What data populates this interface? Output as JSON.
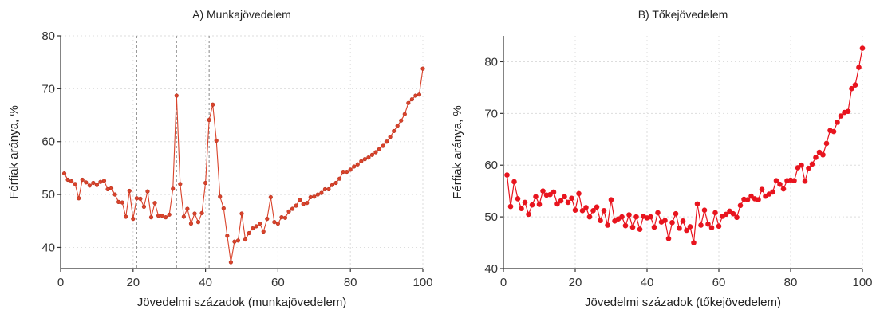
{
  "chart_data": [
    {
      "type": "line",
      "title": "A) Munkajövedelem",
      "xlabel": "Jövedelmi századok (munkajövedelem)",
      "ylabel": "Férfiak aránya, %",
      "xlim": [
        0,
        100
      ],
      "ylim": [
        36,
        80
      ],
      "xticks": [
        "0",
        "20",
        "40",
        "60",
        "80",
        "100"
      ],
      "yticks": [
        "40",
        "50",
        "60",
        "70",
        "80"
      ],
      "grid": true,
      "color": "#d9432b",
      "vlines": [
        21,
        32,
        41
      ],
      "x": [
        1,
        2,
        3,
        4,
        5,
        6,
        7,
        8,
        9,
        10,
        11,
        12,
        13,
        14,
        15,
        16,
        17,
        18,
        19,
        20,
        21,
        22,
        23,
        24,
        25,
        26,
        27,
        28,
        29,
        30,
        31,
        32,
        33,
        34,
        35,
        36,
        37,
        38,
        39,
        40,
        41,
        42,
        43,
        44,
        45,
        46,
        47,
        48,
        49,
        50,
        51,
        52,
        53,
        54,
        55,
        56,
        57,
        58,
        59,
        60,
        61,
        62,
        63,
        64,
        65,
        66,
        67,
        68,
        69,
        70,
        71,
        72,
        73,
        74,
        75,
        76,
        77,
        78,
        79,
        80,
        81,
        82,
        83,
        84,
        85,
        86,
        87,
        88,
        89,
        90,
        91,
        92,
        93,
        94,
        95,
        96,
        97,
        98,
        99,
        100
      ],
      "y": [
        54,
        52.8,
        52.5,
        52,
        49.3,
        52.8,
        52.3,
        51.7,
        52.2,
        51.8,
        52.4,
        52.6,
        51,
        51.2,
        50,
        48.6,
        48.5,
        45.8,
        50.7,
        45.4,
        49.3,
        49.2,
        47.7,
        50.6,
        45.7,
        48.4,
        46,
        46,
        45.7,
        46.2,
        51.1,
        68.7,
        52,
        45.8,
        47.3,
        44.5,
        46.4,
        44.8,
        46.5,
        52.2,
        64.1,
        67,
        60.2,
        49.6,
        47.4,
        42.2,
        37.2,
        41.1,
        41.3,
        46.4,
        41.5,
        42.7,
        43.6,
        44,
        44.5,
        43,
        45.4,
        49.5,
        44.8,
        44.5,
        45.7,
        45.6,
        46.8,
        47.3,
        47.9,
        49,
        48.2,
        48.4,
        49.5,
        49.6,
        50,
        50.3,
        51,
        51,
        51.8,
        52.2,
        53,
        54.3,
        54.3,
        54.7,
        55.3,
        55.7,
        56.3,
        56.7,
        57,
        57.5,
        58,
        58.6,
        59.2,
        60,
        60.9,
        62,
        63,
        64,
        65.2,
        67.3,
        68,
        68.7,
        68.9,
        73.8
      ]
    },
    {
      "type": "line",
      "title": "B) Tőkejövedelem",
      "xlabel": "Jövedelmi századok (tőkejövedelem)",
      "ylabel": "Férfiak aránya, %",
      "xlim": [
        0,
        100
      ],
      "ylim": [
        40,
        85
      ],
      "xticks": [
        "0",
        "20",
        "40",
        "60",
        "80",
        "100"
      ],
      "yticks": [
        "40",
        "50",
        "60",
        "70",
        "80"
      ],
      "grid": true,
      "color": "#e8141e",
      "x": [
        1,
        2,
        3,
        4,
        5,
        6,
        7,
        8,
        9,
        10,
        11,
        12,
        13,
        14,
        15,
        16,
        17,
        18,
        19,
        20,
        21,
        22,
        23,
        24,
        25,
        26,
        27,
        28,
        29,
        30,
        31,
        32,
        33,
        34,
        35,
        36,
        37,
        38,
        39,
        40,
        41,
        42,
        43,
        44,
        45,
        46,
        47,
        48,
        49,
        50,
        51,
        52,
        53,
        54,
        55,
        56,
        57,
        58,
        59,
        60,
        61,
        62,
        63,
        64,
        65,
        66,
        67,
        68,
        69,
        70,
        71,
        72,
        73,
        74,
        75,
        76,
        77,
        78,
        79,
        80,
        81,
        82,
        83,
        84,
        85,
        86,
        87,
        88,
        89,
        90,
        91,
        92,
        93,
        94,
        95,
        96,
        97,
        98,
        99,
        100
      ],
      "y": [
        58.1,
        52,
        56.8,
        53.5,
        51.6,
        52.8,
        50.5,
        52.3,
        53.9,
        52.4,
        55,
        54.2,
        54.3,
        54.8,
        52.5,
        53.1,
        53.9,
        52.8,
        53.6,
        51.3,
        54.5,
        51.2,
        51.8,
        50,
        51.2,
        51.9,
        49.3,
        51.2,
        48.4,
        53.3,
        49.2,
        49.6,
        50,
        48.3,
        50.4,
        48,
        50,
        47.6,
        50.1,
        49.8,
        50,
        48,
        50.8,
        49,
        49.3,
        45.8,
        48.9,
        50.6,
        47.8,
        49.2,
        47.4,
        48.1,
        45,
        52.5,
        48.4,
        51.3,
        48.6,
        47.9,
        50.8,
        48.2,
        50.1,
        50.5,
        51.1,
        50.6,
        49.9,
        52.2,
        53.4,
        53.3,
        54,
        53.5,
        53.3,
        55.3,
        54,
        54.4,
        54.8,
        57,
        56.3,
        55.4,
        57,
        57.1,
        57,
        59.5,
        60,
        56.9,
        59.4,
        60.2,
        61.5,
        62.5,
        62,
        64.2,
        66.7,
        66.5,
        68.3,
        69.5,
        70.2,
        70.4,
        74.8,
        75.5,
        78.9,
        82.6
      ]
    }
  ]
}
